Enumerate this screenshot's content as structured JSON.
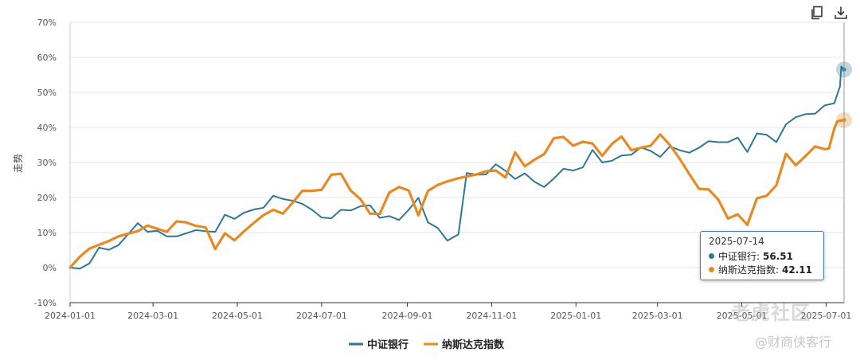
{
  "toolbar": {
    "copy_icon": "copy-icon",
    "download_icon": "download-icon"
  },
  "tooltip": {
    "date": "2025-07-14",
    "rows": [
      {
        "name": "中证银行:",
        "value": "56.51"
      },
      {
        "name": "纳斯达克指数:",
        "value": "42.11"
      }
    ]
  },
  "watermarks": {
    "primary": "老虎社区",
    "secondary": "@财商侠客行"
  },
  "chart_data": {
    "type": "line",
    "ylabel": "走势",
    "ylim": [
      -10,
      70
    ],
    "yticks": [
      -10,
      0,
      10,
      20,
      30,
      40,
      50,
      60,
      70
    ],
    "ytick_labels": [
      "-10%",
      "0%",
      "10%",
      "20%",
      "30%",
      "40%",
      "50%",
      "60%",
      "70%"
    ],
    "xlim": [
      "2024-01-01",
      "2025-07-14"
    ],
    "xticks": [
      "2024-01-01",
      "2024-03-01",
      "2024-05-01",
      "2024-07-01",
      "2024-09-01",
      "2024-11-01",
      "2025-01-01",
      "2025-03-01",
      "2025-05-01",
      "2025-07-01"
    ],
    "grid": true,
    "legend_position": "bottom-center",
    "series": [
      {
        "name": "中证银行",
        "color": "#2e7891",
        "points": [
          [
            "2024-01-01",
            0
          ],
          [
            "2024-01-08",
            -0.3
          ],
          [
            "2024-01-15",
            1.2
          ],
          [
            "2024-01-22",
            5.7
          ],
          [
            "2024-01-29",
            5.1
          ],
          [
            "2024-02-05",
            6.4
          ],
          [
            "2024-02-19",
            12.7
          ],
          [
            "2024-02-26",
            10.2
          ],
          [
            "2024-03-04",
            10.5
          ],
          [
            "2024-03-11",
            8.9
          ],
          [
            "2024-03-18",
            8.9
          ],
          [
            "2024-03-25",
            9.8
          ],
          [
            "2024-04-01",
            10.7
          ],
          [
            "2024-04-08",
            10.4
          ],
          [
            "2024-04-15",
            10.2
          ],
          [
            "2024-04-22",
            15.1
          ],
          [
            "2024-04-29",
            13.9
          ],
          [
            "2024-05-06",
            15.7
          ],
          [
            "2024-05-13",
            16.6
          ],
          [
            "2024-05-20",
            17.1
          ],
          [
            "2024-05-27",
            20.5
          ],
          [
            "2024-06-03",
            19.6
          ],
          [
            "2024-06-10",
            19.1
          ],
          [
            "2024-06-17",
            18.2
          ],
          [
            "2024-06-24",
            16.5
          ],
          [
            "2024-07-01",
            14.3
          ],
          [
            "2024-07-08",
            14.1
          ],
          [
            "2024-07-15",
            16.5
          ],
          [
            "2024-07-22",
            16.3
          ],
          [
            "2024-07-29",
            17.5
          ],
          [
            "2024-08-05",
            17.8
          ],
          [
            "2024-08-12",
            14.2
          ],
          [
            "2024-08-19",
            14.7
          ],
          [
            "2024-08-26",
            13.6
          ],
          [
            "2024-09-02",
            16.5
          ],
          [
            "2024-09-09",
            19.9
          ],
          [
            "2024-09-16",
            12.9
          ],
          [
            "2024-09-23",
            11.3
          ],
          [
            "2024-09-30",
            7.7
          ],
          [
            "2024-10-08",
            9.5
          ],
          [
            "2024-10-14",
            27
          ],
          [
            "2024-10-21",
            26.5
          ],
          [
            "2024-10-28",
            26.6
          ],
          [
            "2024-11-04",
            29.5
          ],
          [
            "2024-11-11",
            27.6
          ],
          [
            "2024-11-18",
            25.3
          ],
          [
            "2024-11-25",
            26.9
          ],
          [
            "2024-12-02",
            24.5
          ],
          [
            "2024-12-09",
            23
          ],
          [
            "2024-12-16",
            25.4
          ],
          [
            "2024-12-23",
            28.2
          ],
          [
            "2024-12-30",
            27.7
          ],
          [
            "2025-01-06",
            28.6
          ],
          [
            "2025-01-13",
            33.6
          ],
          [
            "2025-01-20",
            30
          ],
          [
            "2025-01-27",
            30.5
          ],
          [
            "2025-02-03",
            32
          ],
          [
            "2025-02-10",
            32.2
          ],
          [
            "2025-02-17",
            34.3
          ],
          [
            "2025-02-24",
            33.3
          ],
          [
            "2025-03-03",
            31.6
          ],
          [
            "2025-03-10",
            34.6
          ],
          [
            "2025-03-17",
            33.5
          ],
          [
            "2025-03-24",
            32.8
          ],
          [
            "2025-03-31",
            34.2
          ],
          [
            "2025-04-07",
            36.1
          ],
          [
            "2025-04-14",
            35.8
          ],
          [
            "2025-04-21",
            35.8
          ],
          [
            "2025-04-28",
            37.1
          ],
          [
            "2025-05-05",
            33
          ],
          [
            "2025-05-12",
            38.3
          ],
          [
            "2025-05-19",
            37.9
          ],
          [
            "2025-05-26",
            35.8
          ],
          [
            "2025-06-02",
            40.9
          ],
          [
            "2025-06-09",
            42.9
          ],
          [
            "2025-06-16",
            43.8
          ],
          [
            "2025-06-23",
            43.9
          ],
          [
            "2025-06-30",
            46.3
          ],
          [
            "2025-07-07",
            46.9
          ],
          [
            "2025-07-10",
            50.6
          ],
          [
            "2025-07-11",
            51.6
          ],
          [
            "2025-07-12",
            57.4
          ],
          [
            "2025-07-14",
            56.51
          ]
        ]
      },
      {
        "name": "纳斯达克指数",
        "color": "#e58a25",
        "points": [
          [
            "2024-01-01",
            0
          ],
          [
            "2024-01-08",
            3.1
          ],
          [
            "2024-01-15",
            5.4
          ],
          [
            "2024-01-22",
            6.5
          ],
          [
            "2024-01-29",
            7.6
          ],
          [
            "2024-02-05",
            8.9
          ],
          [
            "2024-02-12",
            9.7
          ],
          [
            "2024-02-19",
            10.4
          ],
          [
            "2024-02-26",
            12
          ],
          [
            "2024-03-04",
            11.1
          ],
          [
            "2024-03-11",
            10.2
          ],
          [
            "2024-03-18",
            13.2
          ],
          [
            "2024-03-25",
            12.9
          ],
          [
            "2024-04-01",
            11.9
          ],
          [
            "2024-04-08",
            11.5
          ],
          [
            "2024-04-15",
            5.3
          ],
          [
            "2024-04-22",
            9.8
          ],
          [
            "2024-04-29",
            7.8
          ],
          [
            "2024-05-06",
            10.4
          ],
          [
            "2024-05-13",
            12.8
          ],
          [
            "2024-05-20",
            15
          ],
          [
            "2024-05-27",
            16.5
          ],
          [
            "2024-06-03",
            15.4
          ],
          [
            "2024-06-10",
            18.5
          ],
          [
            "2024-06-17",
            21.9
          ],
          [
            "2024-06-24",
            21.9
          ],
          [
            "2024-07-01",
            22.2
          ],
          [
            "2024-07-08",
            26.5
          ],
          [
            "2024-07-15",
            26.8
          ],
          [
            "2024-07-22",
            22
          ],
          [
            "2024-07-29",
            19.6
          ],
          [
            "2024-08-05",
            15.4
          ],
          [
            "2024-08-12",
            15.3
          ],
          [
            "2024-08-19",
            21.4
          ],
          [
            "2024-08-26",
            23
          ],
          [
            "2024-09-02",
            22
          ],
          [
            "2024-09-09",
            14.9
          ],
          [
            "2024-09-16",
            21.9
          ],
          [
            "2024-09-23",
            23.6
          ],
          [
            "2024-09-30",
            24.6
          ],
          [
            "2024-10-07",
            25.4
          ],
          [
            "2024-10-14",
            26
          ],
          [
            "2024-10-21",
            26.6
          ],
          [
            "2024-10-28",
            27.5
          ],
          [
            "2024-11-04",
            27.7
          ],
          [
            "2024-11-11",
            25.7
          ],
          [
            "2024-11-18",
            32.9
          ],
          [
            "2024-11-25",
            28.9
          ],
          [
            "2024-12-02",
            30.8
          ],
          [
            "2024-12-09",
            32.4
          ],
          [
            "2024-12-16",
            36.9
          ],
          [
            "2024-12-23",
            37.3
          ],
          [
            "2024-12-30",
            34.8
          ],
          [
            "2025-01-06",
            35.9
          ],
          [
            "2025-01-13",
            35.4
          ],
          [
            "2025-01-20",
            31.9
          ],
          [
            "2025-01-27",
            35.3
          ],
          [
            "2025-02-03",
            37.4
          ],
          [
            "2025-02-10",
            33.5
          ],
          [
            "2025-02-17",
            34.2
          ],
          [
            "2025-02-24",
            34.8
          ],
          [
            "2025-03-03",
            38
          ],
          [
            "2025-03-10",
            35
          ],
          [
            "2025-03-17",
            31.1
          ],
          [
            "2025-03-24",
            26.7
          ],
          [
            "2025-03-31",
            22.5
          ],
          [
            "2025-04-07",
            22.3
          ],
          [
            "2025-04-14",
            19.4
          ],
          [
            "2025-04-21",
            14
          ],
          [
            "2025-04-28",
            15.2
          ],
          [
            "2025-05-05",
            12.2
          ],
          [
            "2025-05-12",
            19.8
          ],
          [
            "2025-05-19",
            20.5
          ],
          [
            "2025-05-26",
            23.5
          ],
          [
            "2025-06-02",
            32.5
          ],
          [
            "2025-06-09",
            29.2
          ],
          [
            "2025-06-16",
            31.8
          ],
          [
            "2025-06-23",
            34.6
          ],
          [
            "2025-06-30",
            33.8
          ],
          [
            "2025-07-03",
            34
          ],
          [
            "2025-07-07",
            39.7
          ],
          [
            "2025-07-09",
            41.7
          ],
          [
            "2025-07-11",
            41.9
          ],
          [
            "2025-07-14",
            42.11
          ]
        ]
      }
    ]
  }
}
